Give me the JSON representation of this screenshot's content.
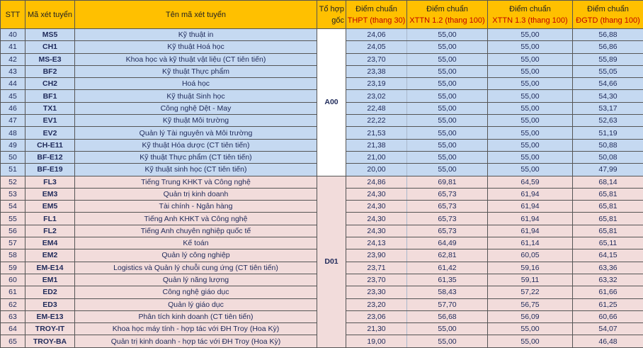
{
  "header": {
    "stt": "STT",
    "code": "Mã xét tuyển",
    "name": "Tên mã xét tuyển",
    "combo_line1": "Tổ hợp",
    "combo_line2": "gốc",
    "thpt_line1": "Điểm chuẩn",
    "thpt_line2": "THPT (thang 30)",
    "x12_line1": "Điểm chuẩn",
    "x12_line2": "XTTN 1.2 (thang 100)",
    "x13_line1": "Điểm chuẩn",
    "x13_line2": "XTTN 1.3 (thang 100)",
    "dgtd_line1": "Điểm chuẩn",
    "dgtd_line2": "ĐGTD (thang 100)"
  },
  "colors": {
    "header": "#ffc000",
    "group_a00": "#c5d9f1",
    "group_d01": "#f2dcdb",
    "subheader_text": "#c00000"
  },
  "groups": [
    {
      "combo": "A00",
      "color": "blue",
      "rows": [
        [
          "40",
          "MS5",
          "Kỹ thuật in",
          "24,06",
          "55,00",
          "55,00",
          "56,88"
        ],
        [
          "41",
          "CH1",
          "Kỹ thuật Hoá học",
          "24,05",
          "55,00",
          "55,00",
          "56,86"
        ],
        [
          "42",
          "MS-E3",
          "Khoa học và kỹ thuật vật liệu (CT tiên tiến)",
          "23,70",
          "55,00",
          "55,00",
          "55,89"
        ],
        [
          "43",
          "BF2",
          "Kỹ thuật Thực phẩm",
          "23,38",
          "55,00",
          "55,00",
          "55,05"
        ],
        [
          "44",
          "CH2",
          "Hoá học",
          "23,19",
          "55,00",
          "55,00",
          "54,66"
        ],
        [
          "45",
          "BF1",
          "Kỹ thuật Sinh học",
          "23,02",
          "55,00",
          "55,00",
          "54,30"
        ],
        [
          "46",
          "TX1",
          "Công nghệ Dệt - May",
          "22,48",
          "55,00",
          "55,00",
          "53,17"
        ],
        [
          "47",
          "EV1",
          "Kỹ thuật Môi trường",
          "22,22",
          "55,00",
          "55,00",
          "52,63"
        ],
        [
          "48",
          "EV2",
          "Quản lý Tài nguyên và Môi trường",
          "21,53",
          "55,00",
          "55,00",
          "51,19"
        ],
        [
          "49",
          "CH-E11",
          "Kỹ thuật Hóa dược (CT tiên tiến)",
          "21,38",
          "55,00",
          "55,00",
          "50,88"
        ],
        [
          "50",
          "BF-E12",
          "Kỹ thuật Thực phẩm (CT tiên tiến)",
          "21,00",
          "55,00",
          "55,00",
          "50,08"
        ],
        [
          "51",
          "BF-E19",
          "Kỹ thuật sinh học (CT tiên tiến)",
          "20,00",
          "55,00",
          "55,00",
          "47,99"
        ]
      ]
    },
    {
      "combo": "D01",
      "color": "pink",
      "rows": [
        [
          "52",
          "FL3",
          "Tiếng Trung KHKT và Công nghệ",
          "24,86",
          "69,81",
          "64,59",
          "68,14"
        ],
        [
          "53",
          "EM3",
          "Quản trị kinh doanh",
          "24,30",
          "65,73",
          "61,94",
          "65,81"
        ],
        [
          "54",
          "EM5",
          "Tài chính - Ngân hàng",
          "24,30",
          "65,73",
          "61,94",
          "65,81"
        ],
        [
          "55",
          "FL1",
          "Tiếng Anh KHKT và Công nghệ",
          "24,30",
          "65,73",
          "61,94",
          "65,81"
        ],
        [
          "56",
          "FL2",
          "Tiếng Anh chuyên nghiệp quốc tế",
          "24,30",
          "65,73",
          "61,94",
          "65,81"
        ],
        [
          "57",
          "EM4",
          "Kế toán",
          "24,13",
          "64,49",
          "61,14",
          "65,11"
        ],
        [
          "58",
          "EM2",
          "Quản lý công nghiệp",
          "23,90",
          "62,81",
          "60,05",
          "64,15"
        ],
        [
          "59",
          "EM-E14",
          "Logistics và Quản lý chuỗi cung ứng (CT tiên tiến)",
          "23,71",
          "61,42",
          "59,16",
          "63,36"
        ],
        [
          "60",
          "EM1",
          "Quản lý năng lượng",
          "23,70",
          "61,35",
          "59,11",
          "63,32"
        ],
        [
          "61",
          "ED2",
          "Công nghệ giáo dục",
          "23,30",
          "58,43",
          "57,22",
          "61,66"
        ],
        [
          "62",
          "ED3",
          "Quản lý giáo dục",
          "23,20",
          "57,70",
          "56,75",
          "61,25"
        ],
        [
          "63",
          "EM-E13",
          "Phân tích kinh doanh (CT tiên tiến)",
          "23,06",
          "56,68",
          "56,09",
          "60,66"
        ],
        [
          "64",
          "TROY-IT",
          "Khoa học máy tính - hợp tác với ĐH Troy (Hoa Kỳ)",
          "21,30",
          "55,00",
          "55,00",
          "54,07"
        ],
        [
          "65",
          "TROY-BA",
          "Quản trị kinh doanh - hợp tác với ĐH Troy (Hoa Kỳ)",
          "19,00",
          "55,00",
          "55,00",
          "46,48"
        ]
      ]
    }
  ]
}
